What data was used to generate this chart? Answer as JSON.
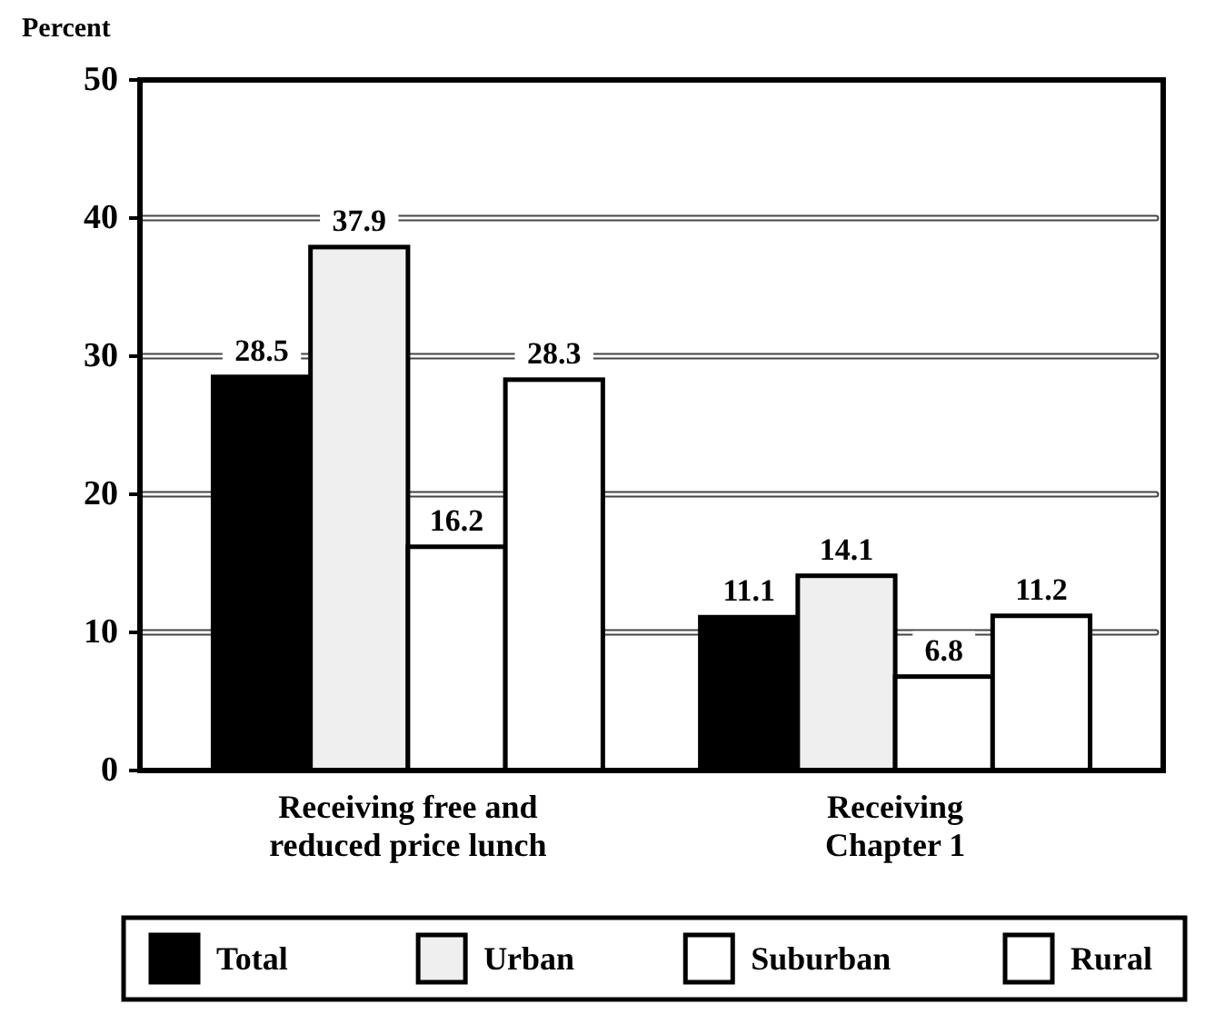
{
  "chart_data": {
    "type": "bar",
    "ylabel": "Percent",
    "categories": [
      "Receiving free and reduced price lunch",
      "Receiving Chapter 1"
    ],
    "series": [
      {
        "name": "Total",
        "color": "#000000",
        "values": [
          28.5,
          11.1
        ]
      },
      {
        "name": "Urban",
        "color": "#efefef",
        "values": [
          37.9,
          14.1
        ]
      },
      {
        "name": "Suburban",
        "color": "#ffffff",
        "values": [
          16.2,
          6.8
        ]
      },
      {
        "name": "Rural",
        "color": "#ffffff",
        "values": [
          28.3,
          11.2
        ]
      }
    ],
    "ylim": [
      0,
      50
    ],
    "yticks": [
      0,
      10,
      20,
      30,
      40,
      50
    ],
    "grid": "y",
    "legend": "bottom",
    "data_labels": true
  }
}
